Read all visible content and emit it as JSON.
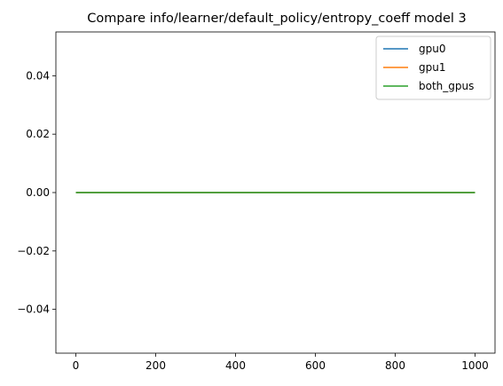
{
  "chart_data": {
    "type": "line",
    "title": "Compare info/learner/default_policy/entropy_coeff model 3",
    "xlabel": "",
    "ylabel": "",
    "xlim": [
      -50,
      1050
    ],
    "ylim": [
      -0.055,
      0.055
    ],
    "x_ticks": [
      0,
      200,
      400,
      600,
      800,
      1000
    ],
    "x_tick_labels": [
      "0",
      "200",
      "400",
      "600",
      "800",
      "1000"
    ],
    "y_ticks": [
      -0.04,
      -0.02,
      0.0,
      0.02,
      0.04
    ],
    "y_tick_labels": [
      "−0.04",
      "−0.02",
      "0.00",
      "0.02",
      "0.04"
    ],
    "grid": false,
    "legend_position": "top-right",
    "series": [
      {
        "name": "gpu0",
        "color": "#1f77b4",
        "x": [
          0,
          1000
        ],
        "y": [
          0,
          0
        ]
      },
      {
        "name": "gpu1",
        "color": "#ff7f0e",
        "x": [
          0,
          1000
        ],
        "y": [
          0,
          0
        ]
      },
      {
        "name": "both_gpus",
        "color": "#2ca02c",
        "x": [
          0,
          1000
        ],
        "y": [
          0,
          0
        ]
      }
    ]
  }
}
